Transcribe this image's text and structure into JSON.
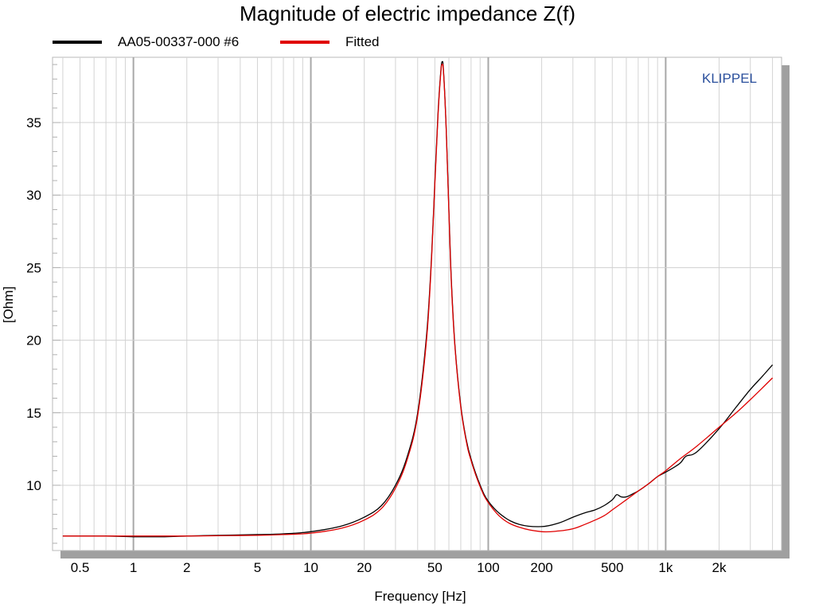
{
  "chart_data": {
    "type": "line",
    "title": "Magnitude of electric impedance Z(f)",
    "xlabel": "Frequency [Hz]",
    "ylabel": "[Ohm]",
    "xscale": "log",
    "xlim": [
      0.35,
      4500
    ],
    "ylim": [
      5.5,
      39.5
    ],
    "grid": true,
    "legend": "top-left",
    "watermark": "KLIPPEL",
    "x_ticks": [
      {
        "value": 0.5,
        "label": "0.5"
      },
      {
        "value": 1,
        "label": "1"
      },
      {
        "value": 2,
        "label": "2"
      },
      {
        "value": 5,
        "label": "5"
      },
      {
        "value": 10,
        "label": "10"
      },
      {
        "value": 20,
        "label": "20"
      },
      {
        "value": 50,
        "label": "50"
      },
      {
        "value": 100,
        "label": "100"
      },
      {
        "value": 200,
        "label": "200"
      },
      {
        "value": 500,
        "label": "500"
      },
      {
        "value": 1000,
        "label": "1k"
      },
      {
        "value": 2000,
        "label": "2k"
      }
    ],
    "y_ticks": [
      {
        "value": 10,
        "label": "10"
      },
      {
        "value": 15,
        "label": "15"
      },
      {
        "value": 20,
        "label": "20"
      },
      {
        "value": 25,
        "label": "25"
      },
      {
        "value": 30,
        "label": "30"
      },
      {
        "value": 35,
        "label": "35"
      }
    ],
    "series": [
      {
        "name": "AA05-00337-000 #6",
        "color": "#000000",
        "x": [
          0.4,
          0.5,
          0.7,
          1,
          1.5,
          2,
          3,
          5,
          7,
          10,
          15,
          20,
          25,
          30,
          35,
          40,
          45,
          48,
          50,
          52,
          54,
          55,
          56,
          58,
          60,
          62,
          65,
          70,
          75,
          80,
          90,
          100,
          120,
          150,
          200,
          250,
          300,
          350,
          400,
          450,
          500,
          530,
          560,
          600,
          650,
          700,
          800,
          900,
          1000,
          1200,
          1300,
          1500,
          2000,
          2500,
          3000,
          3500,
          4000
        ],
        "y": [
          6.5,
          6.5,
          6.5,
          6.45,
          6.45,
          6.5,
          6.55,
          6.6,
          6.65,
          6.8,
          7.2,
          7.8,
          8.6,
          10.0,
          12.0,
          15.0,
          20.5,
          26.0,
          31.0,
          35.5,
          38.5,
          39.2,
          38.5,
          34.5,
          29.0,
          24.0,
          19.5,
          15.5,
          13.2,
          11.8,
          10.0,
          8.9,
          7.9,
          7.3,
          7.15,
          7.4,
          7.8,
          8.1,
          8.3,
          8.6,
          9.0,
          9.35,
          9.2,
          9.2,
          9.4,
          9.6,
          10.1,
          10.6,
          10.9,
          11.5,
          12.0,
          12.3,
          13.9,
          15.4,
          16.6,
          17.5,
          18.3
        ]
      },
      {
        "name": "Fitted",
        "color": "#e00000",
        "x": [
          0.4,
          0.5,
          0.7,
          1,
          1.5,
          2,
          3,
          5,
          7,
          10,
          15,
          20,
          25,
          30,
          35,
          40,
          45,
          48,
          50,
          52,
          54,
          55,
          56,
          58,
          60,
          62,
          65,
          70,
          75,
          80,
          90,
          100,
          120,
          150,
          200,
          250,
          300,
          350,
          400,
          450,
          500,
          600,
          700,
          800,
          900,
          1000,
          1200,
          1500,
          2000,
          2500,
          3000,
          3500,
          4000
        ],
        "y": [
          6.5,
          6.5,
          6.5,
          6.5,
          6.5,
          6.5,
          6.52,
          6.55,
          6.6,
          6.7,
          7.05,
          7.6,
          8.4,
          9.8,
          11.8,
          14.8,
          20.2,
          25.8,
          30.8,
          35.3,
          38.4,
          39.0,
          38.4,
          34.4,
          28.8,
          23.8,
          19.4,
          15.4,
          13.1,
          11.7,
          9.9,
          8.8,
          7.7,
          7.1,
          6.8,
          6.85,
          7.0,
          7.3,
          7.6,
          7.9,
          8.3,
          9.0,
          9.6,
          10.1,
          10.6,
          11.0,
          11.8,
          12.7,
          14.0,
          15.0,
          15.9,
          16.7,
          17.4
        ]
      }
    ]
  }
}
